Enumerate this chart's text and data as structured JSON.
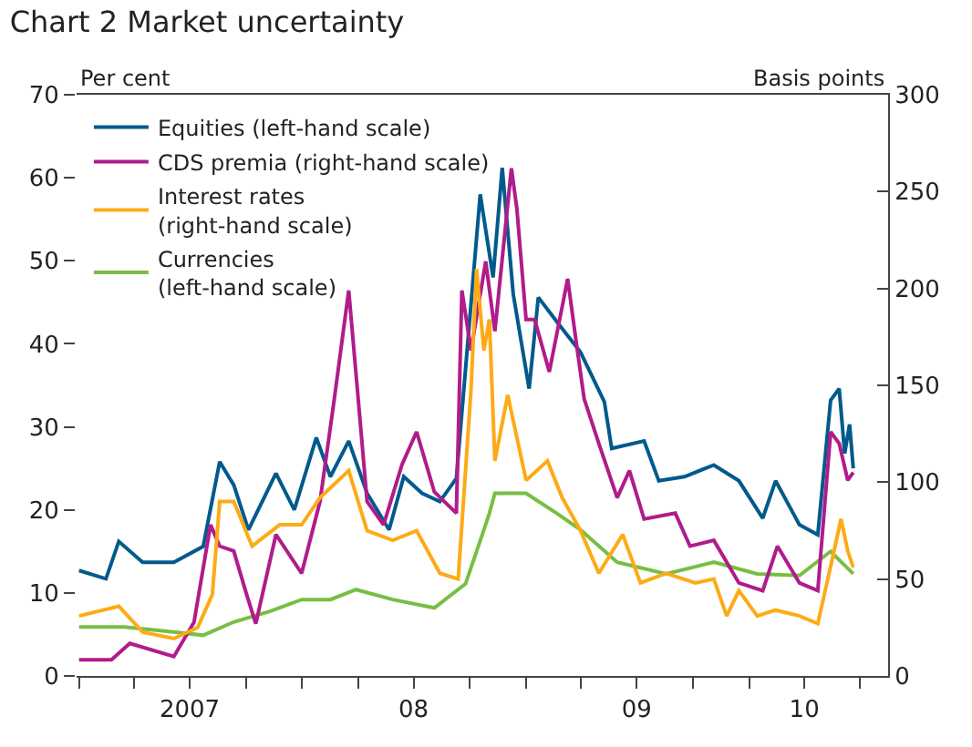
{
  "chart_data": {
    "type": "line",
    "title": "Chart 2 Market uncertainty",
    "ylabel": "Per cent",
    "y2label": "Basis points",
    "xlim": [
      "2006-12-28",
      "2010-08-16"
    ],
    "xticks": [
      {
        "value": "2007-01-01",
        "label": null
      },
      {
        "value": "2007-04-01",
        "label": null
      },
      {
        "value": "2007-07-01",
        "label": "2007"
      },
      {
        "value": "2007-10-01",
        "label": null
      },
      {
        "value": "2008-01-01",
        "label": null
      },
      {
        "value": "2008-04-01",
        "label": null
      },
      {
        "value": "2008-07-01",
        "label": "08"
      },
      {
        "value": "2008-10-01",
        "label": null
      },
      {
        "value": "2009-01-01",
        "label": null
      },
      {
        "value": "2009-04-01",
        "label": null
      },
      {
        "value": "2009-07-01",
        "label": "09"
      },
      {
        "value": "2009-10-01",
        "label": null
      },
      {
        "value": "2010-01-01",
        "label": null
      },
      {
        "value": "2010-04-01",
        "label": "10"
      },
      {
        "value": "2010-07-01",
        "label": null
      }
    ],
    "ylim": [
      0,
      70
    ],
    "yticks": [
      0,
      10,
      20,
      30,
      40,
      50,
      60,
      70
    ],
    "y2lim": [
      0,
      300
    ],
    "y2ticks": [
      0,
      50,
      100,
      150,
      200,
      250,
      300
    ],
    "grid": false,
    "legend": "top left",
    "marker": "none",
    "line_style": "solid",
    "series": [
      {
        "name": "Equities (left-hand scale)",
        "color": "#005a8c",
        "x": [
          "2007-01-01",
          "2007-02-14",
          "2007-03-07",
          "2007-04-15",
          "2007-06-05",
          "2007-07-23",
          "2007-08-19",
          "2007-09-11",
          "2007-10-05",
          "2007-11-19",
          "2007-12-19",
          "2008-01-24",
          "2008-02-16",
          "2008-03-17",
          "2008-04-16",
          "2008-05-22",
          "2008-06-15",
          "2008-07-15",
          "2008-08-13",
          "2008-09-09",
          "2008-10-18",
          "2008-11-08",
          "2008-11-23",
          "2008-12-11",
          "2009-01-06",
          "2009-01-21",
          "2009-02-23",
          "2009-03-31",
          "2009-05-09",
          "2009-05-21",
          "2009-07-13",
          "2009-08-06",
          "2009-09-17",
          "2009-11-04",
          "2009-12-15",
          "2010-01-23",
          "2010-02-13",
          "2010-03-24",
          "2010-04-23",
          "2010-05-14",
          "2010-05-28",
          "2010-06-06",
          "2010-06-14",
          "2010-06-20"
        ],
        "values": [
          12.7,
          11.7,
          16.2,
          13.7,
          13.7,
          15.6,
          25.8,
          23,
          17.6,
          24.4,
          20,
          28.7,
          24,
          28.3,
          22,
          17.6,
          24,
          22,
          21,
          23.8,
          58,
          48,
          61.2,
          46,
          34.6,
          45.6,
          42.4,
          39,
          33,
          27.4,
          28.3,
          23.5,
          24,
          25.4,
          23.5,
          19,
          23.5,
          18.2,
          17,
          33.2,
          34.6,
          26.8,
          30.3,
          25
        ]
      },
      {
        "name": "CDS premia (right-hand scale)",
        "color": "#b01c8b",
        "axis": "y2",
        "x": [
          "2007-01-01",
          "2007-02-23",
          "2007-03-25",
          "2007-06-05",
          "2007-07-08",
          "2007-08-04",
          "2007-08-19",
          "2007-09-11",
          "2007-10-02",
          "2007-10-17",
          "2007-11-19",
          "2007-12-31",
          "2008-01-30",
          "2008-02-22",
          "2008-03-17",
          "2008-04-07",
          "2008-04-16",
          "2008-05-13",
          "2008-06-12",
          "2008-07-06",
          "2008-08-04",
          "2008-09-09",
          "2008-09-18",
          "2008-10-03",
          "2008-10-27",
          "2008-11-11",
          "2008-12-08",
          "2008-12-17",
          "2009-01-01",
          "2009-01-15",
          "2009-02-08",
          "2009-03-10",
          "2009-03-25",
          "2009-04-06",
          "2009-04-30",
          "2009-05-30",
          "2009-06-19",
          "2009-07-13",
          "2009-09-02",
          "2009-09-26",
          "2009-11-04",
          "2009-12-15",
          "2010-01-23",
          "2010-02-16",
          "2010-03-24",
          "2010-04-23",
          "2010-05-14",
          "2010-05-28",
          "2010-06-11",
          "2010-06-20"
        ],
        "values": [
          8.4,
          8.4,
          16.8,
          10,
          27.7,
          78,
          67,
          64.5,
          42,
          27,
          73,
          53,
          90,
          142,
          199,
          123,
          90,
          78,
          109,
          126,
          95,
          84,
          199,
          168,
          214,
          178,
          262,
          241,
          184,
          184,
          157,
          205,
          170,
          143,
          120,
          92,
          106,
          81,
          84,
          67,
          70,
          48,
          44,
          67,
          48,
          44,
          126,
          120,
          101,
          105
        ]
      },
      {
        "name": "Interest rates\n(right-hand scale)",
        "color": "#fcab17",
        "axis": "y2",
        "x": [
          "2007-01-01",
          "2007-03-07",
          "2007-04-15",
          "2007-06-05",
          "2007-07-14",
          "2007-08-07",
          "2007-08-19",
          "2007-09-11",
          "2007-10-11",
          "2007-11-25",
          "2007-12-31",
          "2008-01-30",
          "2008-03-17",
          "2008-04-16",
          "2008-05-28",
          "2008-07-06",
          "2008-08-13",
          "2008-09-12",
          "2008-10-03",
          "2008-10-12",
          "2008-10-24",
          "2008-11-02",
          "2008-11-11",
          "2008-12-02",
          "2009-01-01",
          "2009-02-05",
          "2009-03-01",
          "2009-03-31",
          "2009-04-30",
          "2009-06-08",
          "2009-07-07",
          "2009-08-18",
          "2009-10-05",
          "2009-11-04",
          "2009-11-25",
          "2009-12-15",
          "2010-01-14",
          "2010-02-13",
          "2010-03-24",
          "2010-04-23",
          "2010-05-08",
          "2010-05-31",
          "2010-06-11",
          "2010-06-20"
        ],
        "values": [
          31,
          36,
          22.6,
          19.3,
          25,
          42,
          90,
          90,
          67,
          78,
          78,
          92,
          106,
          75,
          70,
          75,
          53,
          50,
          148,
          210,
          168,
          184,
          111,
          145,
          101,
          111,
          92,
          75,
          53,
          73,
          48,
          53,
          48,
          50,
          31,
          44,
          31,
          34,
          31,
          27,
          48,
          81,
          64.5,
          56
        ]
      },
      {
        "name": "Currencies\n(left-hand scale)",
        "color": "#78be43",
        "x": [
          "2007-01-01",
          "2007-03-16",
          "2007-06-05",
          "2007-07-23",
          "2007-09-11",
          "2007-11-10",
          "2007-12-31",
          "2008-02-16",
          "2008-03-29",
          "2008-05-28",
          "2008-08-04",
          "2008-09-24",
          "2008-10-24",
          "2008-11-02",
          "2008-11-11",
          "2009-01-01",
          "2009-02-20",
          "2009-03-31",
          "2009-05-30",
          "2009-08-18",
          "2009-11-04",
          "2010-01-14",
          "2010-03-24",
          "2010-05-14",
          "2010-06-20"
        ],
        "values": [
          5.9,
          5.9,
          5.3,
          4.9,
          6.5,
          7.8,
          9.2,
          9.2,
          10.4,
          9.2,
          8.2,
          11.1,
          17.6,
          19.6,
          22,
          22,
          19.6,
          17.6,
          13.7,
          12.3,
          13.7,
          12.3,
          12.1,
          15,
          12.3
        ]
      }
    ]
  }
}
